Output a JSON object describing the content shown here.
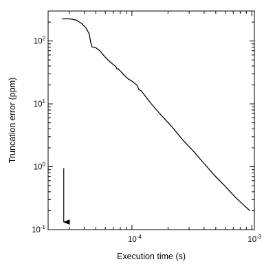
{
  "chart_data": {
    "type": "line",
    "xlabel": "Execution time (s)",
    "ylabel": "Truncation error (ppm)",
    "xscale": "log",
    "yscale": "log",
    "xlim": [
      2e-05,
      0.00105
    ],
    "ylim": [
      0.1,
      300
    ],
    "grid": false,
    "x_ticks": [
      {
        "value": 0.0001,
        "base": "10",
        "exp": "-4"
      },
      {
        "value": 0.001,
        "base": "10",
        "exp": "-3"
      }
    ],
    "y_ticks": [
      {
        "value": 0.1,
        "base": "10",
        "exp": "-1"
      },
      {
        "value": 1,
        "base": "10",
        "exp": "0"
      },
      {
        "value": 10,
        "base": "10",
        "exp": "1"
      },
      {
        "value": 100,
        "base": "10",
        "exp": "2"
      }
    ],
    "series": [
      {
        "x": [
          2.62e-05,
          3.06e-05,
          3.44e-05,
          3.8e-05,
          4.15e-05,
          4.4e-05,
          4.53e-05,
          4.65e-05,
          4.8e-05,
          5e-05,
          5.4e-05,
          6e-05,
          6.7e-05,
          7.35e-05,
          7.5e-05,
          7.7e-05,
          8.7e-05,
          9.3e-05,
          0.0001,
          0.000106,
          0.00011,
          0.000114,
          0.00012,
          0.000142,
          0.000174,
          0.000216,
          0.000264,
          0.000323,
          0.000396,
          0.000485,
          0.000593,
          0.000726,
          0.000887,
          0.000965
        ],
        "y": [
          225,
          225,
          215,
          190,
          160,
          130,
          95,
          80,
          80,
          78,
          70,
          55,
          45,
          39,
          36,
          36,
          28,
          25,
          23,
          21,
          20,
          17,
          16,
          10.5,
          6.7,
          4.3,
          2.7,
          1.8,
          1.15,
          0.74,
          0.5,
          0.33,
          0.23,
          0.2
        ]
      }
    ],
    "annotation_arrow": {
      "x": 2.7e-05,
      "y_from": 0.95,
      "y_to": 0.105
    }
  }
}
